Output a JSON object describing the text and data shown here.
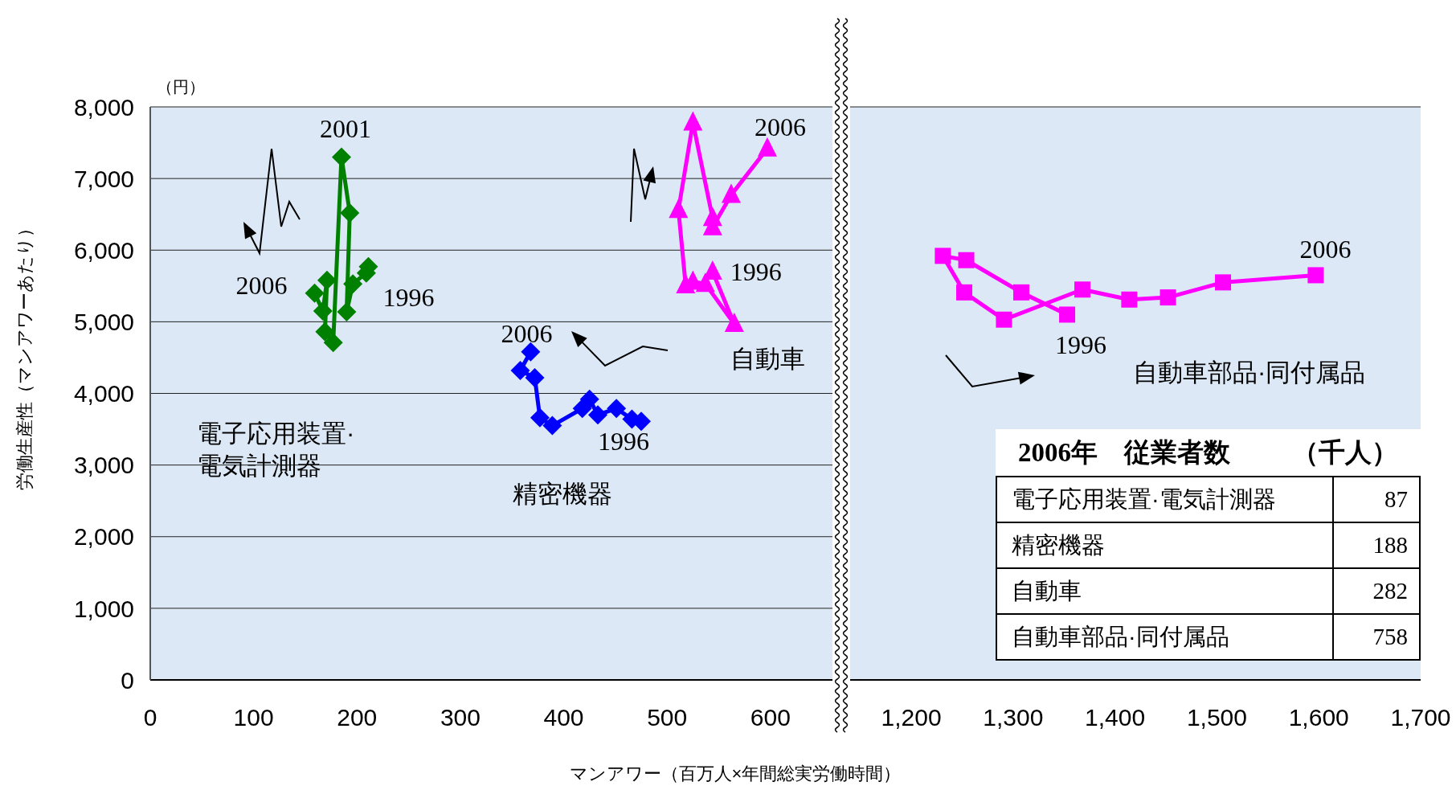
{
  "chart_data": [
    {
      "type": "line",
      "ylabel": "労働生産性（マンアワーあたり）",
      "xlabel": "マンアワー（百万人×年間総実労働時間）",
      "xlim": [
        0,
        660
      ],
      "xticks": [
        {
          "value": 0,
          "label": "0"
        },
        {
          "value": 100,
          "label": "100"
        },
        {
          "value": 200,
          "label": "200"
        },
        {
          "value": 300,
          "label": "300"
        },
        {
          "value": 400,
          "label": "400"
        },
        {
          "value": 500,
          "label": "500"
        },
        {
          "value": 600,
          "label": "600"
        }
      ],
      "ylim": [
        0,
        8000
      ],
      "yticks": [
        {
          "value": 0,
          "label": "0"
        },
        {
          "value": 1000,
          "label": "1,000"
        },
        {
          "value": 2000,
          "label": "2,000"
        },
        {
          "value": 3000,
          "label": "3,000"
        },
        {
          "value": 4000,
          "label": "4,000"
        },
        {
          "value": 5000,
          "label": "5,000"
        },
        {
          "value": 6000,
          "label": "6,000"
        },
        {
          "value": 7000,
          "label": "7,000"
        },
        {
          "value": 8000,
          "label": "8,000"
        }
      ],
      "grid": "y",
      "annotations": [
        "（円）",
        {
          "text": "2001",
          "x": 185,
          "y": 7300
        },
        {
          "text": "2006",
          "x": 159,
          "y": 5400
        },
        {
          "text": "1996",
          "x": 211,
          "y": 5770
        },
        {
          "text": "2006",
          "x": 368,
          "y": 4580
        },
        {
          "text": "1996",
          "x": 475,
          "y": 3610
        },
        {
          "text": "2006",
          "x": 597,
          "y": 7420
        },
        {
          "text": "1996",
          "x": 544,
          "y": 5700
        }
      ],
      "series": [
        {
          "name": "電子応用装置·電気計測器",
          "color": "#008000",
          "marker": "diamond",
          "x": [
            211,
            209,
            196,
            190,
            193,
            185,
            177,
            169,
            171,
            167,
            159
          ],
          "values": [
            5770,
            5680,
            5530,
            5140,
            6520,
            7300,
            4710,
            4860,
            5580,
            5150,
            5400
          ]
        },
        {
          "name": "精密機器",
          "color": "#0000ff",
          "marker": "diamond",
          "x": [
            475,
            466,
            451,
            433,
            425,
            418,
            389,
            377,
            372,
            358,
            368
          ],
          "values": [
            3610,
            3640,
            3790,
            3700,
            3920,
            3790,
            3550,
            3660,
            4220,
            4320,
            4580
          ]
        },
        {
          "name": "自動車",
          "color": "#ff00ff",
          "marker": "triangle",
          "x": [
            544,
            565,
            537,
            525,
            518,
            511,
            525,
            544,
            544,
            562,
            597
          ],
          "values": [
            5700,
            4970,
            5530,
            5560,
            5510,
            6560,
            7780,
            6450,
            6320,
            6770,
            7420
          ]
        }
      ]
    },
    {
      "type": "line",
      "xlim": [
        1140,
        1700
      ],
      "xticks": [
        {
          "value": 1200,
          "label": "1,200"
        },
        {
          "value": 1300,
          "label": "1,300"
        },
        {
          "value": 1400,
          "label": "1,400"
        },
        {
          "value": 1500,
          "label": "1,500"
        },
        {
          "value": 1600,
          "label": "1,600"
        },
        {
          "value": 1700,
          "label": "1,700"
        }
      ],
      "ylim": [
        0,
        8000
      ],
      "tick_labels": "x",
      "grid": "y",
      "annotations": [
        {
          "text": "1996",
          "x": 1353,
          "y": 5100
        },
        {
          "text": "2006",
          "x": 1597,
          "y": 5650
        },
        "2006年　従業者数",
        "（千人）",
        "電子応用装置·電気計測器",
        "87",
        "精密機器",
        "188",
        "自動車",
        "282",
        "自動車部品·同付属品",
        "758"
      ],
      "series": [
        {
          "name": "自動車部品·同付属品",
          "color": "#ff00ff",
          "marker": "square",
          "x": [
            1353,
            1308,
            1254,
            1231,
            1252,
            1291,
            1368,
            1414,
            1452,
            1506,
            1597
          ],
          "values": [
            5100,
            5410,
            5860,
            5920,
            5410,
            5030,
            5450,
            5310,
            5340,
            5550,
            5650
          ]
        }
      ]
    }
  ]
}
